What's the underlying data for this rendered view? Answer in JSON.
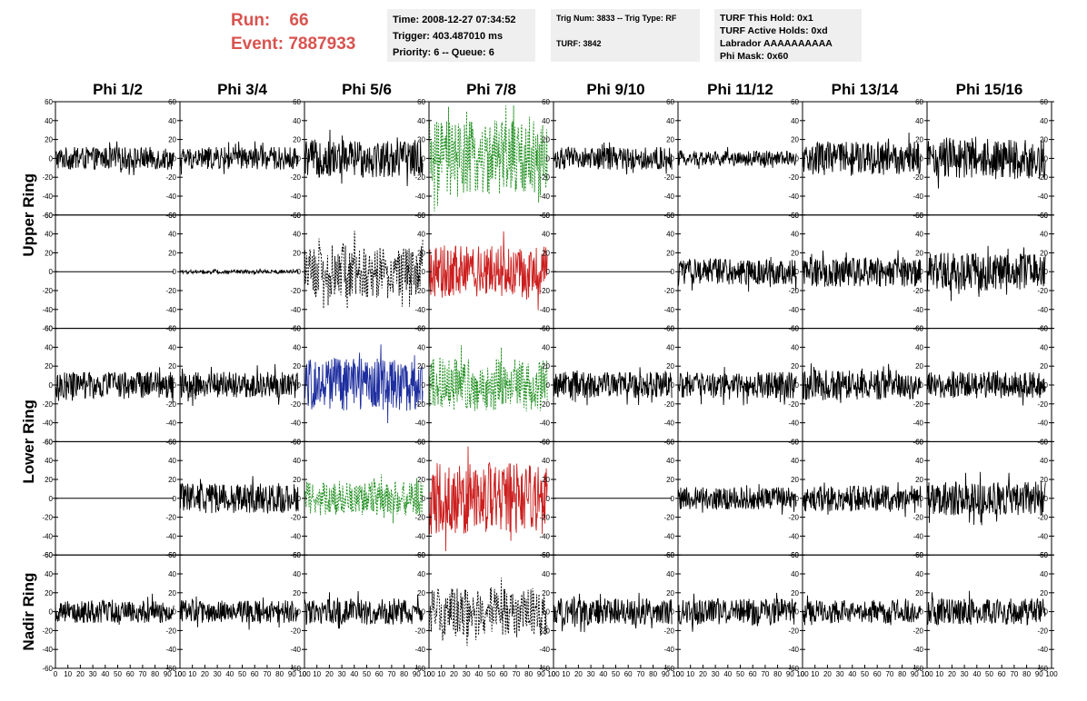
{
  "header": {
    "run_label": "Run:",
    "run_value": "66",
    "event_label": "Event:",
    "event_value": "7887933"
  },
  "info_time": {
    "time": "Time: 2008-12-27 07:34:52",
    "trigger": "Trigger: 403.487010 ms",
    "priority": "Priority: 6 -- Queue: 6"
  },
  "info_trig": {
    "trig": "Trig Num: 3833 -- Trig Type: RF",
    "turf": "TURF: 3842"
  },
  "info_turf": {
    "hold": "TURF This Hold: 0x1",
    "active": "TURF Active Holds: 0xd",
    "labrador": "Labrador AAAAAAAAAA",
    "mask": "Phi Mask: 0x60"
  },
  "columns": [
    "Phi 1/2",
    "Phi 3/4",
    "Phi 5/6",
    "Phi 7/8",
    "Phi 9/10",
    "Phi 11/12",
    "Phi 13/14",
    "Phi 15/16"
  ],
  "ring_labels": [
    {
      "label": "Upper Ring",
      "rows": [
        0,
        1
      ]
    },
    {
      "label": "Lower Ring",
      "rows": [
        2,
        3
      ]
    },
    {
      "label": "Nadir Ring",
      "rows": [
        4
      ]
    }
  ],
  "chart_data": {
    "type": "line",
    "title": "",
    "xlim": [
      0,
      100
    ],
    "ylim": [
      -60,
      60
    ],
    "x_ticks": [
      0,
      10,
      20,
      30,
      40,
      50,
      60,
      70,
      80,
      90,
      100
    ],
    "x_tick_labels": [
      "0",
      "10",
      "20",
      "30",
      "40",
      "50",
      "60",
      "70",
      "80",
      "90",
      "100"
    ],
    "y_ticks": [
      -60,
      -40,
      -20,
      0,
      20,
      40,
      60
    ],
    "y_tick_labels": [
      "-60",
      "-40",
      "-20",
      "0",
      "20",
      "40",
      "60"
    ],
    "x_tick_rows": [
      4
    ],
    "y_tick_sides": {
      "left_of_first": true,
      "right_of_each": true
    },
    "waveform_x_range": [
      0,
      95
    ],
    "rows": 5,
    "cols": 8,
    "colors": {
      "black": "#000000",
      "green": "#1f8f1f",
      "red": "#cc1f1f",
      "blue": "#1f2f9f"
    },
    "series": [
      {
        "row": 0,
        "col": 0,
        "color": "black",
        "dashed": false,
        "amplitude": 12,
        "flat": false
      },
      {
        "row": 0,
        "col": 1,
        "color": "black",
        "dashed": false,
        "amplitude": 12,
        "flat": false
      },
      {
        "row": 0,
        "col": 2,
        "color": "black",
        "dashed": false,
        "amplitude": 20,
        "flat": false
      },
      {
        "row": 0,
        "col": 3,
        "color": "green",
        "dashed": true,
        "amplitude": 40,
        "flat": false
      },
      {
        "row": 0,
        "col": 4,
        "color": "black",
        "dashed": false,
        "amplitude": 12,
        "flat": false
      },
      {
        "row": 0,
        "col": 5,
        "color": "black",
        "dashed": false,
        "amplitude": 8,
        "flat": false
      },
      {
        "row": 0,
        "col": 6,
        "color": "black",
        "dashed": false,
        "amplitude": 18,
        "flat": false
      },
      {
        "row": 0,
        "col": 7,
        "color": "black",
        "dashed": false,
        "amplitude": 22,
        "flat": false
      },
      {
        "row": 1,
        "col": 0,
        "color": "black",
        "dashed": false,
        "amplitude": 0,
        "flat": true
      },
      {
        "row": 1,
        "col": 1,
        "color": "black",
        "dashed": false,
        "amplitude": 2,
        "flat": false
      },
      {
        "row": 1,
        "col": 2,
        "color": "black",
        "dashed": true,
        "amplitude": 28,
        "flat": false
      },
      {
        "row": 1,
        "col": 3,
        "color": "red",
        "dashed": false,
        "amplitude": 28,
        "flat": false
      },
      {
        "row": 1,
        "col": 4,
        "color": "black",
        "dashed": false,
        "amplitude": 0,
        "flat": true
      },
      {
        "row": 1,
        "col": 5,
        "color": "black",
        "dashed": false,
        "amplitude": 14,
        "flat": false
      },
      {
        "row": 1,
        "col": 6,
        "color": "black",
        "dashed": false,
        "amplitude": 16,
        "flat": false
      },
      {
        "row": 1,
        "col": 7,
        "color": "black",
        "dashed": false,
        "amplitude": 20,
        "flat": false
      },
      {
        "row": 2,
        "col": 0,
        "color": "black",
        "dashed": false,
        "amplitude": 14,
        "flat": false
      },
      {
        "row": 2,
        "col": 1,
        "color": "black",
        "dashed": false,
        "amplitude": 14,
        "flat": false
      },
      {
        "row": 2,
        "col": 2,
        "color": "blue",
        "dashed": false,
        "amplitude": 28,
        "flat": false
      },
      {
        "row": 2,
        "col": 3,
        "color": "green",
        "dashed": true,
        "amplitude": 28,
        "flat": false
      },
      {
        "row": 2,
        "col": 4,
        "color": "black",
        "dashed": false,
        "amplitude": 14,
        "flat": false
      },
      {
        "row": 2,
        "col": 5,
        "color": "black",
        "dashed": false,
        "amplitude": 14,
        "flat": false
      },
      {
        "row": 2,
        "col": 6,
        "color": "black",
        "dashed": false,
        "amplitude": 16,
        "flat": false
      },
      {
        "row": 2,
        "col": 7,
        "color": "black",
        "dashed": false,
        "amplitude": 14,
        "flat": false
      },
      {
        "row": 3,
        "col": 0,
        "color": "black",
        "dashed": false,
        "amplitude": 0,
        "flat": true
      },
      {
        "row": 3,
        "col": 1,
        "color": "black",
        "dashed": false,
        "amplitude": 16,
        "flat": false
      },
      {
        "row": 3,
        "col": 2,
        "color": "green",
        "dashed": true,
        "amplitude": 18,
        "flat": false
      },
      {
        "row": 3,
        "col": 3,
        "color": "red",
        "dashed": false,
        "amplitude": 38,
        "flat": false
      },
      {
        "row": 3,
        "col": 4,
        "color": "black",
        "dashed": false,
        "amplitude": 0,
        "flat": true
      },
      {
        "row": 3,
        "col": 5,
        "color": "black",
        "dashed": false,
        "amplitude": 12,
        "flat": false
      },
      {
        "row": 3,
        "col": 6,
        "color": "black",
        "dashed": false,
        "amplitude": 14,
        "flat": false
      },
      {
        "row": 3,
        "col": 7,
        "color": "black",
        "dashed": false,
        "amplitude": 18,
        "flat": false
      },
      {
        "row": 4,
        "col": 0,
        "color": "black",
        "dashed": false,
        "amplitude": 12,
        "flat": false
      },
      {
        "row": 4,
        "col": 1,
        "color": "black",
        "dashed": false,
        "amplitude": 12,
        "flat": false
      },
      {
        "row": 4,
        "col": 2,
        "color": "black",
        "dashed": false,
        "amplitude": 14,
        "flat": false
      },
      {
        "row": 4,
        "col": 3,
        "color": "black",
        "dashed": true,
        "amplitude": 26,
        "flat": false
      },
      {
        "row": 4,
        "col": 4,
        "color": "black",
        "dashed": false,
        "amplitude": 14,
        "flat": false
      },
      {
        "row": 4,
        "col": 5,
        "color": "black",
        "dashed": false,
        "amplitude": 14,
        "flat": false
      },
      {
        "row": 4,
        "col": 6,
        "color": "black",
        "dashed": false,
        "amplitude": 12,
        "flat": false
      },
      {
        "row": 4,
        "col": 7,
        "color": "black",
        "dashed": false,
        "amplitude": 14,
        "flat": false
      }
    ]
  }
}
